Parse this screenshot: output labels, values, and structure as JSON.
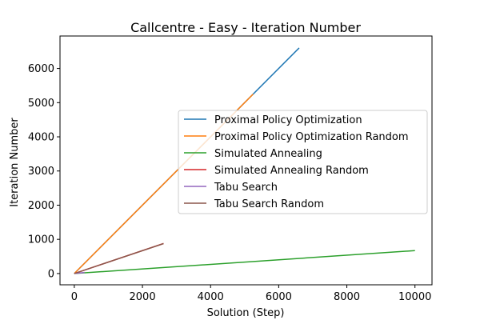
{
  "chart_data": {
    "type": "line",
    "title": "Callcentre - Easy - Iteration Number",
    "xlabel": "Solution (Step)",
    "ylabel": "Iteration Number",
    "xlim": [
      -420,
      10500
    ],
    "ylim": [
      -330,
      6950
    ],
    "xticks": [
      0,
      2000,
      4000,
      6000,
      8000,
      10000
    ],
    "yticks": [
      0,
      1000,
      2000,
      3000,
      4000,
      5000,
      6000
    ],
    "grid": false,
    "legend_position": "center-right",
    "series": [
      {
        "name": "Proximal Policy Optimization",
        "color": "#1f77b4",
        "x": [
          0,
          6600
        ],
        "y": [
          0,
          6600
        ]
      },
      {
        "name": "Proximal Policy Optimization Random",
        "color": "#ff7f0e",
        "x": [
          0,
          5250
        ],
        "y": [
          0,
          5250
        ]
      },
      {
        "name": "Simulated Annealing",
        "color": "#2ca02c",
        "x": [
          0,
          10000
        ],
        "y": [
          0,
          670
        ]
      },
      {
        "name": "Simulated Annealing Random",
        "color": "#d62728",
        "x": [
          0,
          2620
        ],
        "y": [
          0,
          880
        ]
      },
      {
        "name": "Tabu Search",
        "color": "#9467bd",
        "x": [
          0,
          300
        ],
        "y": [
          0,
          30
        ]
      },
      {
        "name": "Tabu Search Random",
        "color": "#8c564b",
        "x": [
          0,
          2620
        ],
        "y": [
          0,
          875
        ]
      }
    ]
  }
}
